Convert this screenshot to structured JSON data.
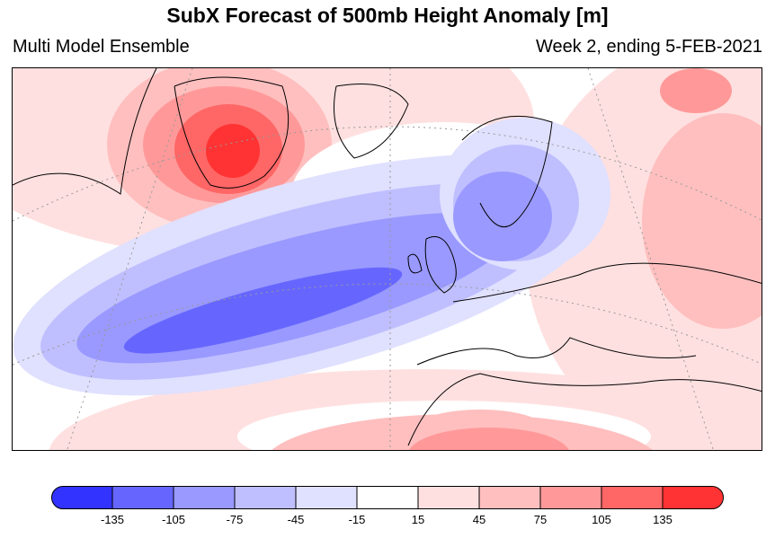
{
  "title": "SubX Forecast of 500mb Height Anomaly [m]",
  "subtitle_left": "Multi Model Ensemble",
  "subtitle_right": "Week 2, ending 5-FEB-2021",
  "colorbar": {
    "colors": [
      "#3333ff",
      "#6666ff",
      "#9999ff",
      "#bfbfff",
      "#e0e0ff",
      "#ffffff",
      "#ffe0e0",
      "#ffbfbf",
      "#ff9999",
      "#ff6666",
      "#ff3333"
    ],
    "labels": [
      "-135",
      "-105",
      "-75",
      "-45",
      "-15",
      "15",
      "45",
      "75",
      "105",
      "135"
    ]
  }
}
